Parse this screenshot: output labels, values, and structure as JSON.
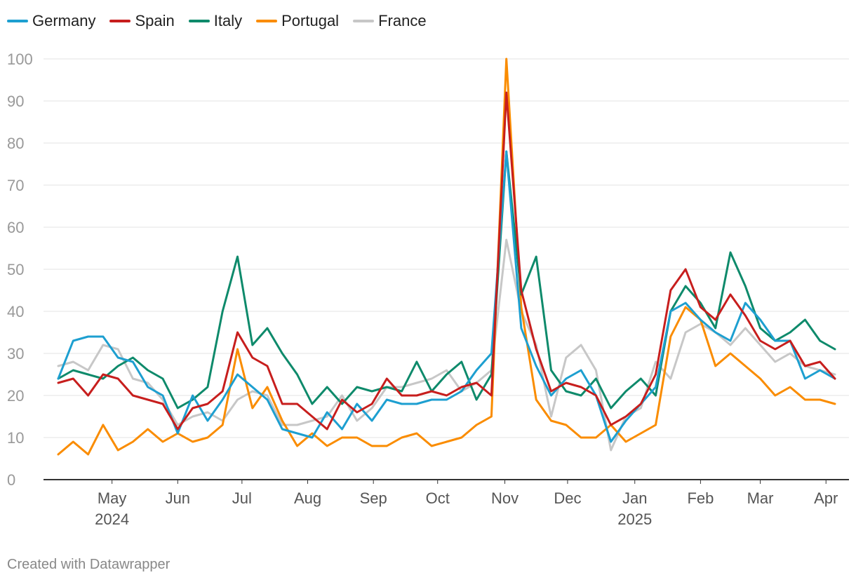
{
  "chart_data": {
    "type": "line",
    "title": "",
    "xlabel": "",
    "ylabel": "",
    "ylim": [
      0,
      100
    ],
    "yticks": [
      0,
      10,
      20,
      30,
      40,
      50,
      60,
      70,
      80,
      90,
      100
    ],
    "grid": true,
    "legend_position": "top-left",
    "x": [
      "2024-04-07",
      "2024-04-14",
      "2024-04-21",
      "2024-04-28",
      "2024-05-05",
      "2024-05-12",
      "2024-05-19",
      "2024-05-26",
      "2024-06-02",
      "2024-06-09",
      "2024-06-16",
      "2024-06-23",
      "2024-06-30",
      "2024-07-07",
      "2024-07-14",
      "2024-07-21",
      "2024-07-28",
      "2024-08-04",
      "2024-08-11",
      "2024-08-18",
      "2024-08-25",
      "2024-09-01",
      "2024-09-08",
      "2024-09-15",
      "2024-09-22",
      "2024-09-29",
      "2024-10-06",
      "2024-10-13",
      "2024-10-20",
      "2024-10-27",
      "2024-11-03",
      "2024-11-10",
      "2024-11-17",
      "2024-11-24",
      "2024-12-01",
      "2024-12-08",
      "2024-12-15",
      "2024-12-22",
      "2024-12-29",
      "2025-01-05",
      "2025-01-12",
      "2025-01-19",
      "2025-01-26",
      "2025-02-02",
      "2025-02-09",
      "2025-02-16",
      "2025-02-23",
      "2025-03-02",
      "2025-03-09",
      "2025-03-16",
      "2025-03-23",
      "2025-03-30",
      "2025-04-06"
    ],
    "x_ticks": [
      {
        "label": "May",
        "sublabel": "2024",
        "position": 3.6
      },
      {
        "label": "Jun",
        "sublabel": "",
        "position": 8
      },
      {
        "label": "Jul",
        "sublabel": "",
        "position": 12.3
      },
      {
        "label": "Aug",
        "sublabel": "",
        "position": 16.7
      },
      {
        "label": "Sep",
        "sublabel": "",
        "position": 21.1
      },
      {
        "label": "Oct",
        "sublabel": "",
        "position": 25.4
      },
      {
        "label": "Nov",
        "sublabel": "",
        "position": 29.9
      },
      {
        "label": "Dec",
        "sublabel": "",
        "position": 34.1
      },
      {
        "label": "Jan",
        "sublabel": "2025",
        "position": 38.6
      },
      {
        "label": "Feb",
        "sublabel": "",
        "position": 43
      },
      {
        "label": "Mar",
        "sublabel": "",
        "position": 47
      },
      {
        "label": "Apr",
        "sublabel": "",
        "position": 51.4
      }
    ],
    "series": [
      {
        "name": "Germany",
        "color": "#1d9fd0",
        "values": [
          24,
          33,
          34,
          34,
          29,
          28,
          22,
          20,
          11,
          20,
          14,
          19,
          25,
          22,
          19,
          12,
          11,
          10,
          16,
          12,
          18,
          14,
          19,
          18,
          18,
          19,
          19,
          21,
          26,
          30,
          78,
          36,
          27,
          20,
          24,
          26,
          20,
          9,
          14,
          18,
          22,
          40,
          42,
          38,
          35,
          33,
          42,
          38,
          33,
          33,
          24,
          26,
          24
        ]
      },
      {
        "name": "Spain",
        "color": "#c71e1d",
        "values": [
          23,
          24,
          20,
          25,
          24,
          20,
          19,
          18,
          12,
          17,
          18,
          21,
          35,
          29,
          27,
          18,
          18,
          15,
          12,
          19,
          16,
          18,
          24,
          20,
          20,
          21,
          20,
          22,
          23,
          20,
          92,
          45,
          31,
          21,
          23,
          22,
          20,
          13,
          15,
          18,
          25,
          45,
          50,
          41,
          38,
          44,
          39,
          33,
          31,
          33,
          27,
          28,
          24
        ]
      },
      {
        "name": "Italy",
        "color": "#0e8a6b",
        "values": [
          24,
          26,
          25,
          24,
          27,
          29,
          26,
          24,
          17,
          19,
          22,
          40,
          53,
          32,
          36,
          30,
          25,
          18,
          22,
          18,
          22,
          21,
          22,
          21,
          28,
          21,
          25,
          28,
          19,
          25,
          78,
          44,
          53,
          26,
          21,
          20,
          24,
          17,
          21,
          24,
          20,
          40,
          46,
          42,
          36,
          54,
          46,
          36,
          33,
          35,
          38,
          33,
          31
        ]
      },
      {
        "name": "Portugal",
        "color": "#fa8c00",
        "values": [
          6,
          9,
          6,
          13,
          7,
          9,
          12,
          9,
          11,
          9,
          10,
          13,
          31,
          17,
          22,
          14,
          8,
          11,
          8,
          10,
          10,
          8,
          8,
          10,
          11,
          8,
          9,
          10,
          13,
          15,
          100,
          41,
          19,
          14,
          13,
          10,
          10,
          13,
          9,
          11,
          13,
          34,
          41,
          38,
          27,
          30,
          27,
          24,
          20,
          22,
          19,
          19,
          18
        ]
      },
      {
        "name": "France",
        "color": "#c7c7c7",
        "values": [
          27,
          28,
          26,
          32,
          31,
          24,
          23,
          19,
          13,
          15,
          16,
          14,
          19,
          21,
          20,
          13,
          13,
          14,
          15,
          20,
          14,
          17,
          22,
          22,
          23,
          24,
          26,
          21,
          23,
          26,
          57,
          40,
          32,
          15,
          29,
          32,
          26,
          7,
          15,
          17,
          28,
          24,
          35,
          37,
          35,
          32,
          36,
          32,
          28,
          30,
          27,
          26,
          25
        ]
      }
    ]
  },
  "footer": {
    "credit": "Created with Datawrapper"
  }
}
